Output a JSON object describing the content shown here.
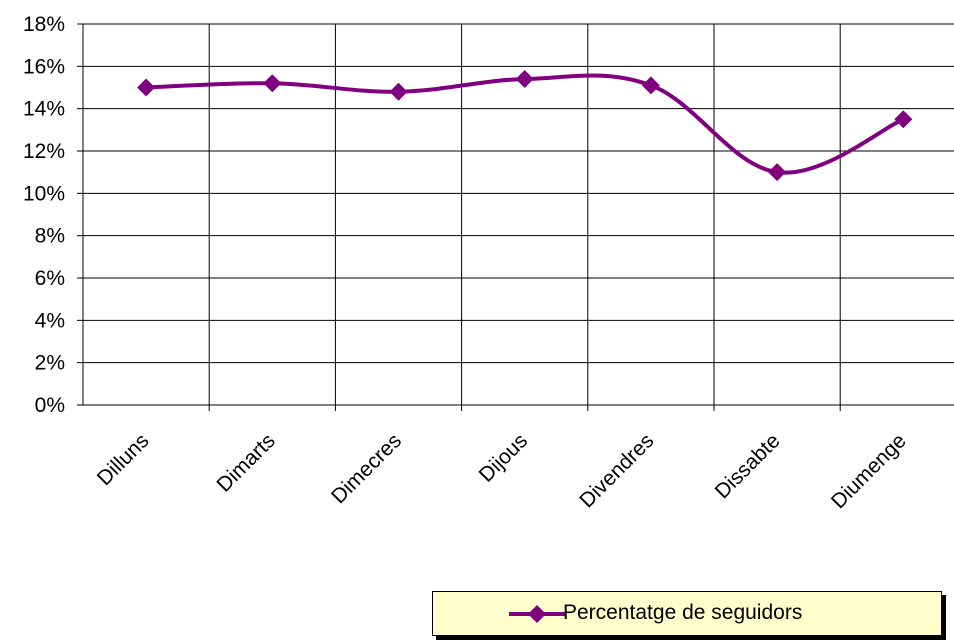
{
  "chart_data": {
    "type": "line",
    "title": "",
    "xlabel": "",
    "ylabel": "",
    "categories": [
      "Dilluns",
      "Dimarts",
      "Dimecres",
      "Dijous",
      "Divendres",
      "Dissabte",
      "Diumenge"
    ],
    "series": [
      {
        "name": "Percentatge de seguidors",
        "values": [
          15.0,
          15.2,
          14.8,
          15.4,
          15.1,
          11.0,
          13.5
        ],
        "color": "#800080",
        "marker": "diamond",
        "smoothed": true
      }
    ],
    "y_ticks": [
      "0%",
      "2%",
      "4%",
      "6%",
      "8%",
      "10%",
      "12%",
      "14%",
      "16%",
      "18%"
    ],
    "ylim": [
      0,
      18
    ],
    "y_unit": "%",
    "grid": true,
    "legend_position": "bottom-right"
  },
  "legend": {
    "label": "Percentatge de seguidors",
    "background": "#ffffcc"
  }
}
